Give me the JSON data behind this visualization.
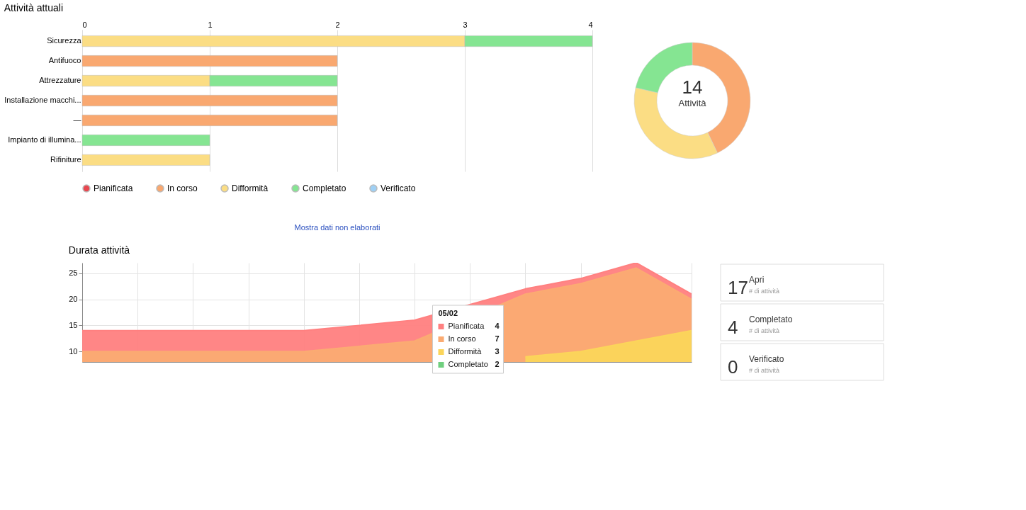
{
  "chart_data": [
    {
      "type": "bar",
      "orientation": "horizontal",
      "stacked": true,
      "title": "Attività attuali",
      "categories": [
        "Sicurezza",
        "Antifuoco",
        "Attrezzature",
        "Installazione macchi...",
        "—",
        "Impianto di illumina...",
        "Rifiniture"
      ],
      "series": [
        {
          "name": "Pianificata",
          "color": "#e8474f",
          "values": [
            null,
            null,
            null,
            null,
            null,
            null,
            null
          ]
        },
        {
          "name": "In corso",
          "color": "#f9a870",
          "values": [
            null,
            2,
            null,
            2,
            2,
            null,
            null
          ]
        },
        {
          "name": "Difformità",
          "color": "#fbdd84",
          "values": [
            3,
            null,
            1,
            null,
            null,
            null,
            1
          ]
        },
        {
          "name": "Completato",
          "color": "#85e592",
          "values": [
            1,
            null,
            1,
            null,
            null,
            1,
            null
          ]
        },
        {
          "name": "Verificato",
          "color": "#9fd0f5",
          "values": [
            null,
            null,
            null,
            null,
            null,
            null,
            null
          ]
        }
      ],
      "xlim": [
        0,
        4
      ],
      "xticks": [
        0,
        1,
        2,
        3,
        4
      ],
      "grid": "x",
      "legend": "bottom",
      "annotations": [
        "Mostra dati non elaborati"
      ]
    },
    {
      "type": "donut",
      "categories": [
        null,
        null,
        null
      ],
      "values": [
        42.86,
        35.71,
        21.43
      ],
      "colors": [
        "#f9a870",
        "#fbdd84",
        "#85e592"
      ],
      "annotations": [
        "14",
        "Attività"
      ]
    },
    {
      "type": "area",
      "title": "Durata attività",
      "categories": [
        null,
        null,
        null,
        null,
        null,
        null,
        null,
        null,
        null,
        null,
        null,
        null
      ],
      "series": [
        {
          "name": "Pianificata",
          "color": "#ff8080",
          "values": [
            14,
            14,
            14,
            14,
            14,
            15,
            16,
            null,
            22,
            24,
            27,
            21
          ]
        },
        {
          "name": "In corso",
          "color": "#fbab72",
          "values": [
            10,
            10,
            10,
            10,
            10,
            11,
            12,
            null,
            21,
            23,
            26,
            20
          ]
        },
        {
          "name": "Difformità",
          "color": "#fbd55a",
          "values": [
            null,
            null,
            null,
            null,
            null,
            null,
            null,
            null,
            9,
            10,
            12,
            14
          ]
        },
        {
          "name": "Completato",
          "color": "#6fcf7e",
          "values": [
            null,
            null,
            null,
            null,
            null,
            null,
            null,
            null,
            null,
            null,
            null,
            null
          ]
        }
      ],
      "ylim": [
        8,
        27
      ],
      "yticks": [
        10,
        15,
        20,
        25
      ],
      "grid": true,
      "legend": "right",
      "annotations": [
        "05/02",
        "4",
        "7",
        "3",
        "2"
      ]
    },
    {
      "type": "other",
      "annotations": [
        "17",
        "Apri",
        "# di attività",
        "4",
        "Completato",
        "# di attività",
        "0",
        "Verificato",
        "# di attività"
      ]
    }
  ]
}
